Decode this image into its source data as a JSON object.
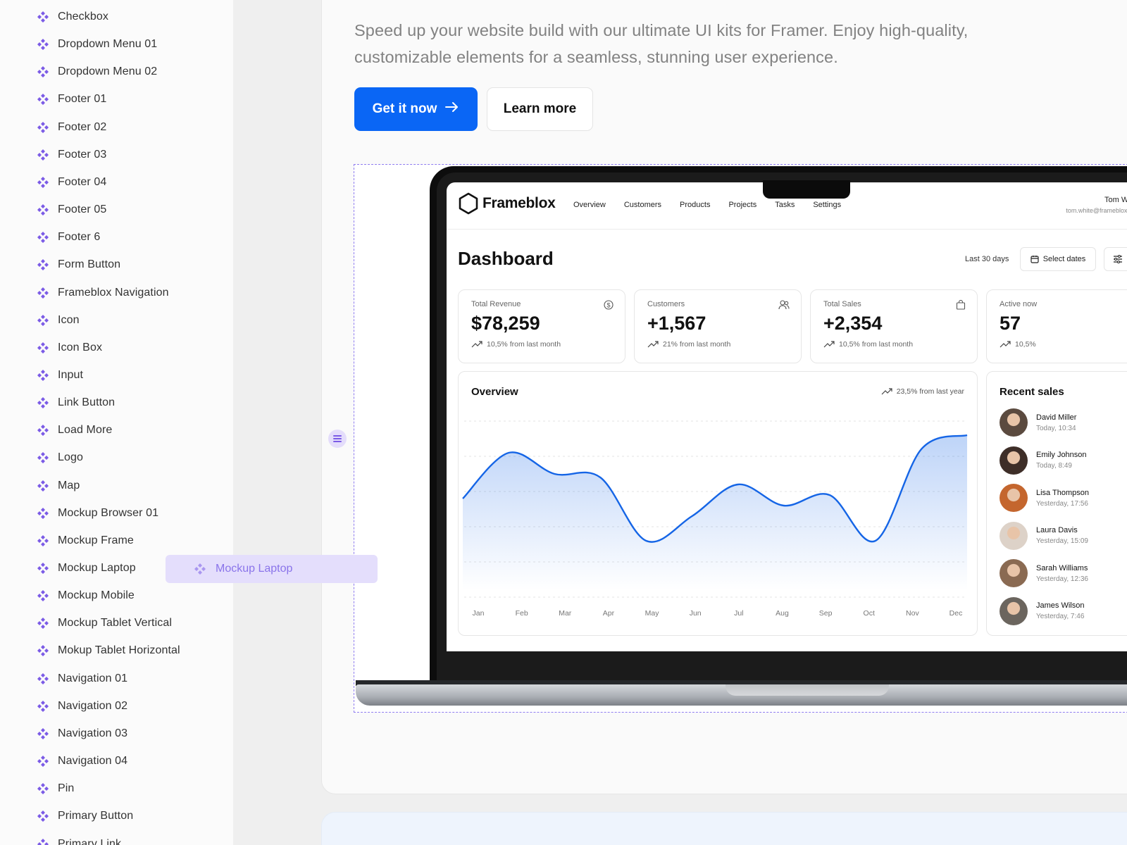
{
  "sidebar": {
    "items": [
      "Checkbox",
      "Dropdown Menu 01",
      "Dropdown Menu 02",
      "Footer 01",
      "Footer 02",
      "Footer 03",
      "Footer 04",
      "Footer 05",
      "Footer 6",
      "Form Button",
      "Frameblox Navigation",
      "Icon",
      "Icon Box",
      "Input",
      "Link Button",
      "Load More",
      "Logo",
      "Map",
      "Mockup Browser 01",
      "Mockup Frame",
      "Mockup Laptop",
      "Mockup Mobile",
      "Mockup Tablet Vertical",
      "Mokup Tablet Horizontal",
      "Navigation 01",
      "Navigation 02",
      "Navigation 03",
      "Navigation 04",
      "Pin",
      "Primary Button",
      "Primary Link"
    ],
    "component_icon": "component-diamond-icon",
    "icon_color": "#7b5be6"
  },
  "drag_ghost": {
    "label": "Mockup Laptop"
  },
  "hero": {
    "description": "Speed up your website build with our ultimate UI kits for Framer. Enjoy high-quality, customizable elements for a seamless, stunning user experience.",
    "primary_button": "Get it now",
    "secondary_button": "Learn more",
    "accent": "#0a66f5"
  },
  "dashboard": {
    "brand": "Frameblox",
    "nav": [
      "Overview",
      "Customers",
      "Products",
      "Projects",
      "Tasks",
      "Settings"
    ],
    "user": {
      "name": "Tom White",
      "email": "tom.white@frameblox.com"
    },
    "title": "Dashboard",
    "range": "Last 30 days",
    "select_dates": "Select dates",
    "stats": [
      {
        "label": "Total Revenue",
        "value": "$78,259",
        "change": "10,5% from last month",
        "icon": "dollar-icon"
      },
      {
        "label": "Customers",
        "value": "+1,567",
        "change": "21% from last month",
        "icon": "users-icon"
      },
      {
        "label": "Total Sales",
        "value": "+2,354",
        "change": "10,5% from last month",
        "icon": "bag-icon"
      },
      {
        "label": "Active now",
        "value": "57",
        "change": "10,5%",
        "icon": "activity-icon"
      }
    ],
    "overview": {
      "title": "Overview",
      "change": "23,5% from last year"
    },
    "recent_sales": {
      "title": "Recent sales",
      "items": [
        {
          "name": "David Miller",
          "time": "Today, 10:34",
          "amount": "$"
        },
        {
          "name": "Emily Johnson",
          "time": "Today, 8:49",
          "amount": "$"
        },
        {
          "name": "Lisa Thompson",
          "time": "Yesterday, 17:56",
          "amount": "$"
        },
        {
          "name": "Laura Davis",
          "time": "Yesterday, 15:09",
          "amount": "$"
        },
        {
          "name": "Sarah Williams",
          "time": "Yesterday, 12:36",
          "amount": "$"
        },
        {
          "name": "James Wilson",
          "time": "Yesterday, 7:46",
          "amount": "$"
        }
      ]
    }
  },
  "chart_data": {
    "type": "area",
    "categories": [
      "Jan",
      "Feb",
      "Mar",
      "Apr",
      "May",
      "Jun",
      "Jul",
      "Aug",
      "Sep",
      "Oct",
      "Nov",
      "Dec"
    ],
    "series": [
      {
        "values": [
          52,
          78,
          66,
          64,
          28,
          42,
          60,
          48,
          54,
          28,
          80,
          88
        ]
      }
    ],
    "title": "Overview",
    "ylim": [
      0,
      100
    ],
    "grid": true,
    "color": "#1565e6"
  }
}
